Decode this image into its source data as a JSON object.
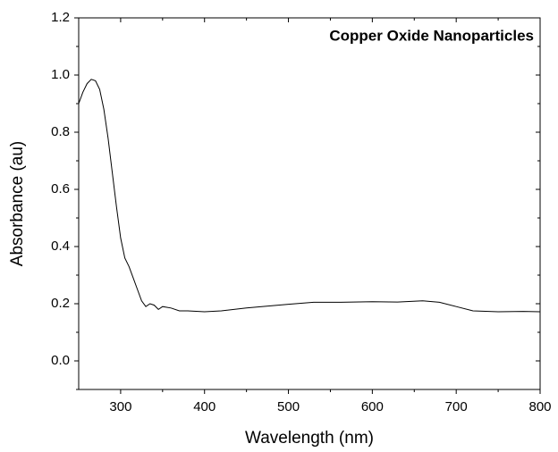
{
  "chart_data": {
    "type": "line",
    "title": "Copper Oxide Nanoparticles",
    "x_label": "Wavelength (nm)",
    "y_label": "Absorbance (au)",
    "xlim": [
      250,
      800
    ],
    "ylim": [
      -0.1,
      1.2
    ],
    "xticks": [
      300,
      400,
      500,
      600,
      700,
      800
    ],
    "yticks": [
      {
        "value": 0,
        "label": "0.0"
      },
      0.2,
      0.4,
      0.6,
      0.8,
      {
        "value": 1,
        "label": "1.0"
      },
      1.2
    ],
    "xminor_ticks": [
      350,
      450,
      550,
      650,
      750
    ],
    "yminor_ticks": [
      -0.1,
      0.1,
      0.3,
      0.5,
      0.7,
      0.9,
      1.1
    ],
    "series": [
      {
        "color": "#000000",
        "x": [
          250,
          255,
          260,
          265,
          270,
          275,
          280,
          285,
          290,
          295,
          300,
          305,
          310,
          315,
          320,
          325,
          330,
          335,
          340,
          345,
          350,
          360,
          370,
          380,
          400,
          420,
          450,
          500,
          530,
          560,
          600,
          630,
          660,
          680,
          700,
          720,
          750,
          780,
          800
        ],
        "values": [
          0.9,
          0.94,
          0.97,
          0.985,
          0.98,
          0.95,
          0.88,
          0.78,
          0.66,
          0.54,
          0.43,
          0.36,
          0.33,
          0.29,
          0.25,
          0.21,
          0.19,
          0.2,
          0.195,
          0.18,
          0.19,
          0.185,
          0.175,
          0.175,
          0.172,
          0.175,
          0.185,
          0.198,
          0.205,
          0.205,
          0.207,
          0.206,
          0.21,
          0.205,
          0.19,
          0.175,
          0.172,
          0.173,
          0.172
        ]
      }
    ]
  }
}
